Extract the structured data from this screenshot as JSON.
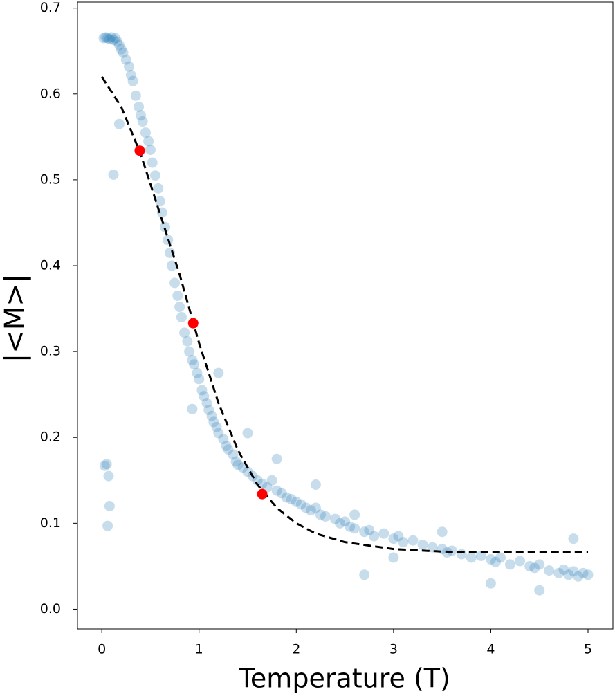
{
  "chart_data": {
    "type": "scatter",
    "xlabel": "Temperature (T)",
    "ylabel": "|<M>|",
    "xlim": [
      -0.25,
      5.256
    ],
    "ylim": [
      -0.023,
      0.707
    ],
    "xticks": [
      0,
      1,
      2,
      3,
      4,
      5
    ],
    "yticks": [
      {
        "value": 0,
        "label": "0.0"
      },
      0.1,
      0.2,
      0.3,
      0.4,
      0.5,
      0.6,
      0.7
    ],
    "series": [
      {
        "type": "scatter",
        "color": "#1f77b4",
        "opacity": 0.25,
        "x": [
          0.02,
          0.04,
          0.06,
          0.08,
          0.1,
          0.12,
          0.14,
          0.16,
          0.18,
          0.2,
          0.22,
          0.25,
          0.28,
          0.3,
          0.32,
          0.35,
          0.38,
          0.4,
          0.42,
          0.45,
          0.48,
          0.5,
          0.52,
          0.55,
          0.58,
          0.6,
          0.62,
          0.65,
          0.68,
          0.7,
          0.72,
          0.75,
          0.78,
          0.8,
          0.82,
          0.85,
          0.88,
          0.9,
          0.93,
          0.95,
          0.98,
          1.0,
          1.03,
          1.05,
          1.08,
          1.1,
          1.13,
          1.15,
          1.18,
          1.2,
          1.25,
          1.28,
          1.3,
          1.35,
          1.38,
          1.4,
          1.45,
          1.5,
          1.55,
          1.6,
          1.65,
          1.7,
          1.75,
          1.8,
          1.85,
          1.9,
          1.95,
          2.0,
          2.05,
          2.1,
          2.15,
          2.2,
          2.25,
          2.3,
          2.4,
          2.45,
          2.5,
          2.55,
          2.6,
          2.7,
          2.75,
          2.8,
          2.9,
          3.0,
          3.05,
          3.1,
          3.2,
          3.3,
          3.4,
          3.5,
          3.55,
          3.6,
          3.7,
          3.8,
          3.9,
          4.0,
          4.05,
          4.1,
          4.2,
          4.3,
          4.4,
          4.45,
          4.5,
          4.6,
          4.7,
          4.75,
          4.8,
          4.85,
          4.9,
          4.95,
          5.0,
          0.03,
          0.05,
          0.07,
          0.08,
          0.06,
          0.12,
          0.18,
          0.93,
          2.7,
          1.2,
          1.5,
          1.8,
          2.2,
          2.6,
          3.0,
          3.5,
          4.0,
          4.5,
          4.85
        ],
        "values": [
          0.665,
          0.666,
          0.665,
          0.664,
          0.666,
          0.663,
          0.665,
          0.661,
          0.657,
          0.652,
          0.648,
          0.64,
          0.632,
          0.622,
          0.615,
          0.598,
          0.585,
          0.575,
          0.568,
          0.555,
          0.545,
          0.535,
          0.52,
          0.505,
          0.49,
          0.475,
          0.462,
          0.445,
          0.43,
          0.415,
          0.4,
          0.38,
          0.365,
          0.352,
          0.34,
          0.322,
          0.312,
          0.3,
          0.29,
          0.285,
          0.275,
          0.268,
          0.255,
          0.248,
          0.24,
          0.232,
          0.225,
          0.218,
          0.212,
          0.205,
          0.198,
          0.19,
          0.186,
          0.18,
          0.172,
          0.168,
          0.165,
          0.16,
          0.155,
          0.15,
          0.146,
          0.142,
          0.15,
          0.138,
          0.135,
          0.13,
          0.128,
          0.125,
          0.122,
          0.118,
          0.115,
          0.118,
          0.11,
          0.108,
          0.105,
          0.1,
          0.102,
          0.096,
          0.094,
          0.09,
          0.092,
          0.085,
          0.088,
          0.082,
          0.085,
          0.078,
          0.08,
          0.075,
          0.072,
          0.07,
          0.066,
          0.068,
          0.064,
          0.06,
          0.062,
          0.058,
          0.055,
          0.06,
          0.052,
          0.056,
          0.05,
          0.048,
          0.052,
          0.045,
          0.042,
          0.046,
          0.04,
          0.044,
          0.038,
          0.042,
          0.04,
          0.167,
          0.169,
          0.155,
          0.12,
          0.097,
          0.506,
          0.565,
          0.233,
          0.04,
          0.275,
          0.205,
          0.175,
          0.145,
          0.11,
          0.06,
          0.09,
          0.03,
          0.022,
          0.082
        ]
      },
      {
        "type": "line",
        "color": "#000000",
        "dashed": true,
        "x": [
          0,
          0.2,
          0.4,
          0.6,
          0.8,
          1.0,
          1.2,
          1.4,
          1.6,
          1.8,
          2.0,
          2.2,
          2.5,
          3.0,
          3.5,
          4.0,
          5.0
        ],
        "values": [
          0.62,
          0.585,
          0.53,
          0.46,
          0.39,
          0.31,
          0.24,
          0.185,
          0.145,
          0.118,
          0.1,
          0.088,
          0.078,
          0.07,
          0.067,
          0.066,
          0.066
        ]
      },
      {
        "type": "scatter",
        "color": "#ff0000",
        "opacity": 1,
        "x": [
          0.39,
          0.94,
          1.65
        ],
        "values": [
          0.534,
          0.333,
          0.134
        ]
      }
    ]
  }
}
